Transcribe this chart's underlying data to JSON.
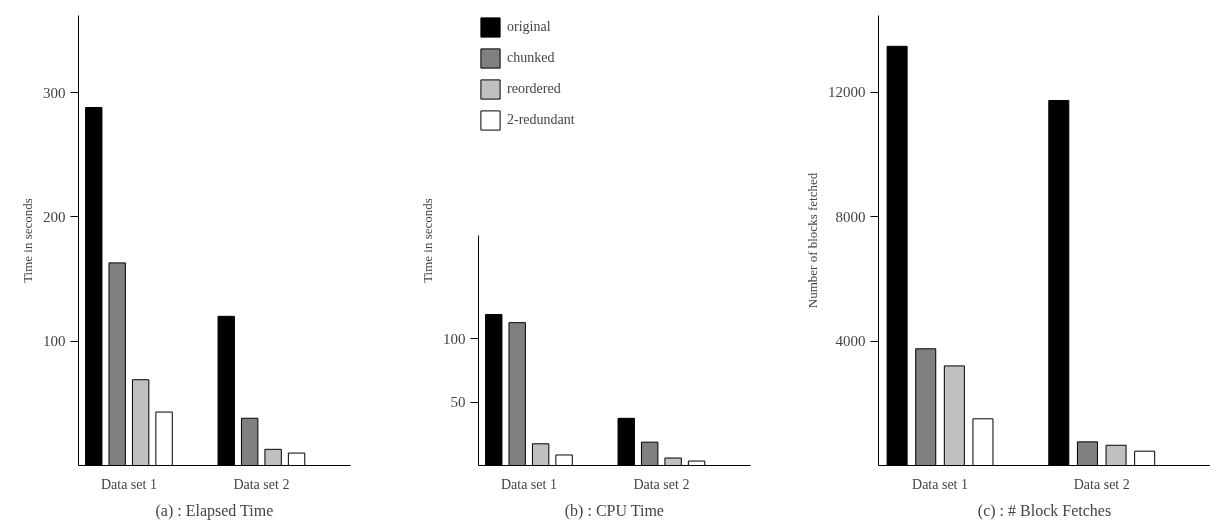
{
  "chart_data": [
    {
      "type": "bar",
      "title": "(a) : Elapsed Time",
      "ylabel": "Time in seconds",
      "categories": [
        "Data set 1",
        "Data set 2"
      ],
      "ylim": [
        0,
        362
      ],
      "yticks": [
        100,
        200,
        300
      ],
      "grid": false,
      "series": [
        {
          "color": "#000000",
          "values": [
            288,
            120
          ]
        },
        {
          "color": "#808080",
          "values": [
            163,
            38
          ]
        },
        {
          "color": "#c0c0c0",
          "values": [
            69,
            13
          ]
        },
        {
          "color": "#ffffff",
          "values": [
            43,
            10
          ]
        }
      ]
    },
    {
      "type": "bar",
      "title": "(b) : CPU Time",
      "ylabel": "Time in seconds",
      "categories": [
        "Data set 1",
        "Data set 2"
      ],
      "ylim": [
        0,
        181
      ],
      "yticks": [
        50,
        100
      ],
      "grid": false,
      "legend": "top",
      "series": [
        {
          "name": "original",
          "color": "#000000",
          "values": [
            119,
            37.2
          ]
        },
        {
          "name": "chunked",
          "color": "#808080",
          "values": [
            112.6,
            18.4
          ]
        },
        {
          "name": "reordered",
          "color": "#c0c0c0",
          "values": [
            17.1,
            5.9
          ]
        },
        {
          "name": "2-redundant",
          "color": "#ffffff",
          "values": [
            8.3,
            3.5
          ]
        }
      ]
    },
    {
      "type": "bar",
      "title": "(c) : # Block Fetches",
      "ylabel": "Number of blocks fetched",
      "categories": [
        "Data set 1",
        "Data set 2"
      ],
      "ylim": [
        0,
        14460
      ],
      "yticks": [
        4000,
        8000,
        12000
      ],
      "grid": false,
      "series": [
        {
          "color": "#000000",
          "values": [
            13470,
            11730
          ]
        },
        {
          "color": "#808080",
          "values": [
            3750,
            760
          ]
        },
        {
          "color": "#c0c0c0",
          "values": [
            3200,
            650
          ]
        },
        {
          "color": "#ffffff",
          "values": [
            1500,
            460
          ]
        }
      ]
    }
  ]
}
